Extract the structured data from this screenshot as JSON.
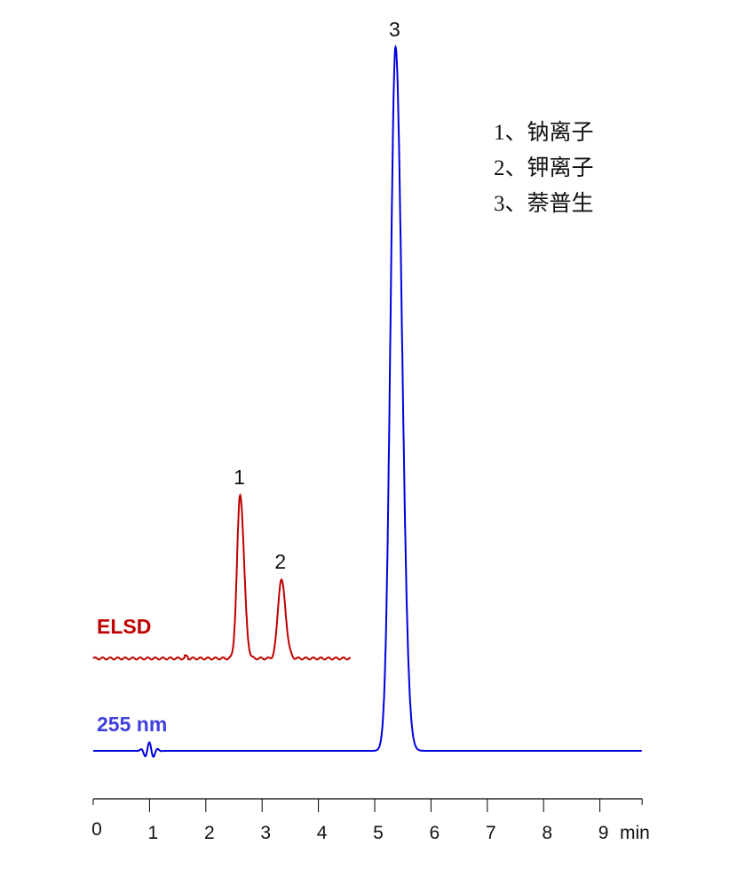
{
  "chart_data": {
    "type": "line",
    "xlabel": "min",
    "ylabel": "",
    "xlim": [
      0,
      9.75
    ],
    "x_ticks": [
      "0",
      "1",
      "2",
      "3",
      "4",
      "5",
      "6",
      "7",
      "8",
      "9"
    ],
    "grid": false,
    "y_axis_shown": false,
    "series": [
      {
        "name": "ELSD",
        "color": "#c00000",
        "label_color": "#c00000",
        "x_range": [
          0,
          4.57
        ],
        "baseline": 0.13,
        "peaks": [
          {
            "label": "1",
            "rt": 2.61,
            "height": 0.23,
            "sigma": 0.055
          },
          {
            "label": "2",
            "rt": 3.34,
            "height": 0.111,
            "sigma": 0.06
          }
        ]
      },
      {
        "name": "255 nm",
        "color": "#0000e0",
        "label_color": "#4040e0",
        "x_range": [
          0,
          9.75
        ],
        "baseline": 0,
        "peaks": [
          {
            "label": "3",
            "rt": 5.37,
            "height": 0.99,
            "sigma": 0.09
          }
        ]
      }
    ],
    "legend": [
      "1、钠离子",
      "2、钾离子",
      "3、萘普生"
    ],
    "legend_placement": "top-right"
  }
}
